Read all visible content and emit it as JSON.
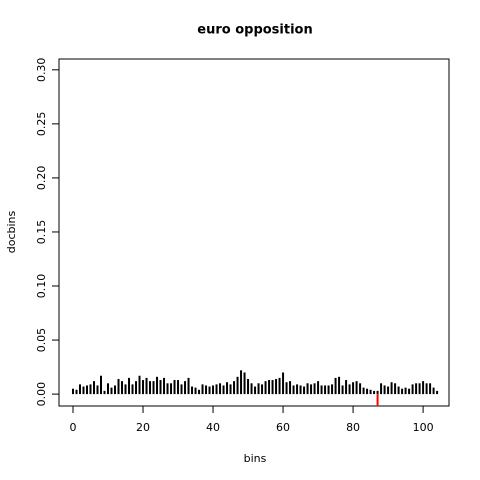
{
  "chart_data": {
    "type": "spike",
    "title": "euro opposition",
    "x_label": "bins",
    "y_label": "docbins",
    "xlim": [
      -4,
      107.4
    ],
    "ylim": [
      -0.011,
      0.31
    ],
    "xticks": [
      0,
      20,
      40,
      60,
      80,
      100
    ],
    "yticks": [
      {
        "value": 0,
        "label": "0.00"
      },
      0.05,
      {
        "value": 0.1,
        "label": "0.10"
      },
      0.15,
      {
        "value": 0.2,
        "label": "0.20"
      },
      0.25,
      {
        "value": 0.3,
        "label": "0.30"
      }
    ],
    "series": [
      {
        "color": "#000000",
        "x": [
          0,
          1,
          2,
          3,
          4,
          5,
          6,
          7,
          8,
          9,
          10,
          11,
          12,
          13,
          14,
          15,
          16,
          17,
          18,
          19,
          20,
          21,
          22,
          23,
          24,
          25,
          26,
          27,
          28,
          29,
          30,
          31,
          32,
          33,
          34,
          35,
          36,
          37,
          38,
          39,
          40,
          41,
          42,
          43,
          44,
          45,
          46,
          47,
          48,
          49,
          50,
          51,
          52,
          53,
          54,
          55,
          56,
          57,
          58,
          59,
          60,
          61,
          62,
          63,
          64,
          65,
          66,
          67,
          68,
          69,
          70,
          71,
          72,
          73,
          74,
          75,
          76,
          77,
          78,
          79,
          80,
          81,
          82,
          83,
          84,
          85,
          86,
          87,
          88,
          89,
          90,
          91,
          92,
          93,
          94,
          95,
          96,
          97,
          98,
          99,
          100,
          101,
          102,
          103,
          104
        ],
        "values": [
          0.005,
          0.004,
          0.009,
          0.007,
          0.008,
          0.009,
          0.012,
          0.008,
          0.017,
          0.003,
          0.01,
          0.006,
          0.008,
          0.014,
          0.012,
          0.009,
          0.015,
          0.009,
          0.012,
          0.017,
          0.013,
          0.015,
          0.012,
          0.012,
          0.016,
          0.013,
          0.015,
          0.01,
          0.01,
          0.013,
          0.013,
          0.009,
          0.012,
          0.015,
          0.007,
          0.006,
          0.004,
          0.009,
          0.008,
          0.007,
          0.008,
          0.009,
          0.01,
          0.008,
          0.011,
          0.009,
          0.012,
          0.016,
          0.022,
          0.02,
          0.014,
          0.01,
          0.007,
          0.01,
          0.009,
          0.012,
          0.013,
          0.013,
          0.014,
          0.015,
          0.02,
          0.011,
          0.012,
          0.008,
          0.009,
          0.008,
          0.007,
          0.01,
          0.009,
          0.01,
          0.012,
          0.008,
          0.008,
          0.008,
          0.009,
          0.015,
          0.016,
          0.008,
          0.013,
          0.009,
          0.011,
          0.012,
          0.01,
          0.006,
          0.005,
          0.004,
          0.003,
          0.003,
          0.01,
          0.008,
          0.007,
          0.011,
          0.01,
          0.007,
          0.005,
          0.006,
          0.005,
          0.009,
          0.01,
          0.01,
          0.012,
          0.01,
          0.01,
          0.006,
          0.003
        ]
      },
      {
        "color": "#ff0000",
        "x": [
          87
        ],
        "values": [
          -0.011
        ]
      }
    ]
  }
}
